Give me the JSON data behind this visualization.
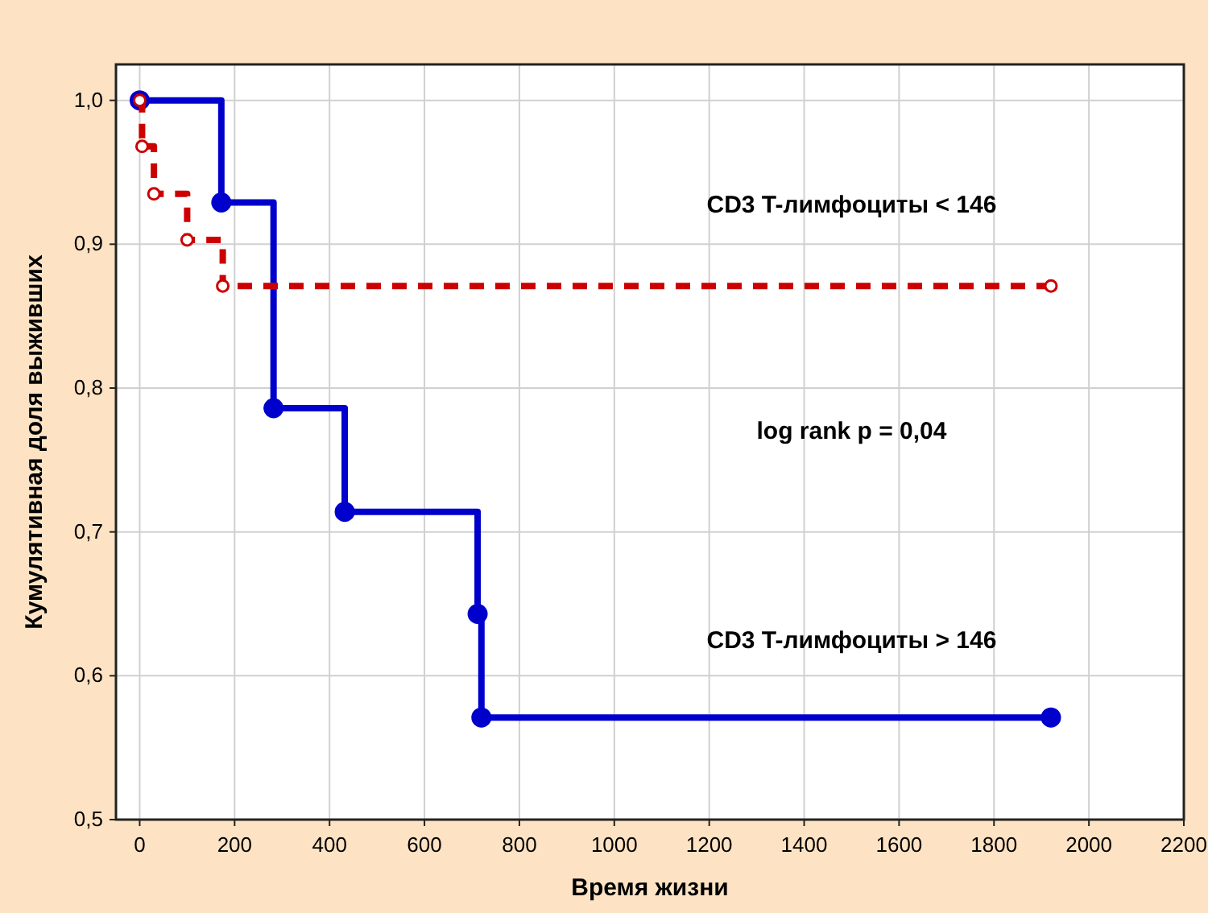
{
  "chart_data": {
    "type": "step",
    "xlabel": "Время жизни",
    "ylabel": "Кумулятивная доля выживших",
    "xlim": [
      -50,
      2200
    ],
    "xticks": [
      0,
      200,
      400,
      600,
      800,
      1000,
      1200,
      1400,
      1600,
      1800,
      2000,
      2200
    ],
    "ylim": [
      0.5,
      1.025
    ],
    "yticks": [
      {
        "value": 0.5,
        "label": "0,5"
      },
      {
        "value": 0.6,
        "label": "0,6"
      },
      {
        "value": 0.7,
        "label": "0,7"
      },
      {
        "value": 0.8,
        "label": "0,8"
      },
      {
        "value": 0.9,
        "label": "0,9"
      },
      {
        "value": 1.0,
        "label": "1,0"
      }
    ],
    "grid": true,
    "marker": "circle",
    "series": [
      {
        "name": "CD3 T-лимфоциты < 146",
        "color": "#cc0000",
        "line_style": "dashed",
        "x": [
          0,
          5,
          30,
          100,
          175,
          1920
        ],
        "values": [
          1,
          0.968,
          0.935,
          0.903,
          0.871,
          0.871
        ]
      },
      {
        "name": "CD3 T-лимфоциты > 146",
        "color": "#0000cc",
        "line_style": "solid",
        "x": [
          0,
          172,
          282,
          432,
          712,
          720,
          1920
        ],
        "values": [
          1,
          0.929,
          0.786,
          0.714,
          0.643,
          0.571,
          0.571
        ]
      }
    ],
    "annotations": [
      "log rank p = 0,04"
    ]
  }
}
